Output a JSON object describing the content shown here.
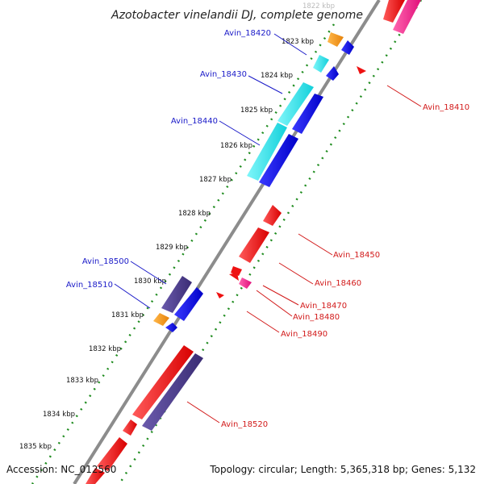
{
  "title": "Azotobacter vinelandii DJ, complete genome",
  "accession": "Accession: NC_012560",
  "topology": "Topology: circular; Length: 5,365,318 bp; Genes: 5,132",
  "kbp_labels": [
    {
      "text": "1822 kbp",
      "faded": true
    },
    {
      "text": "1823 kbp"
    },
    {
      "text": "1824 kbp"
    },
    {
      "text": "1825 kbp"
    },
    {
      "text": "1826 kbp"
    },
    {
      "text": "1827 kbp"
    },
    {
      "text": "1828 kbp"
    },
    {
      "text": "1829 kbp"
    },
    {
      "text": "1830 kbp"
    },
    {
      "text": "1831 kbp"
    },
    {
      "text": "1832 kbp"
    },
    {
      "text": "1833 kbp"
    },
    {
      "text": "1834 kbp"
    },
    {
      "text": "1835 kbp"
    }
  ],
  "gene_labels_left": [
    {
      "text": "Avin_18420"
    },
    {
      "text": "Avin_18430"
    },
    {
      "text": "Avin_18440"
    },
    {
      "text": "Avin_18500"
    },
    {
      "text": "Avin_18510"
    }
  ],
  "gene_labels_right": [
    {
      "text": "Avin_18410"
    },
    {
      "text": "Avin_18450"
    },
    {
      "text": "Avin_18460"
    },
    {
      "text": "Avin_18470"
    },
    {
      "text": "Avin_18480"
    },
    {
      "text": "Avin_18490"
    },
    {
      "text": "Avin_18520"
    }
  ],
  "colors": {
    "backbone": "#8c8c8c",
    "tick_ring": "#1f8c1f",
    "gene_red": "#ee1111",
    "gene_pink": "#ee2288",
    "gene_cyan": "#22e0e8",
    "gene_blue": "#1111dd",
    "gene_purple": "#4a3a8c",
    "gene_orange": "#f59a1a",
    "label_blue": "#1a1ac8",
    "label_red": "#d21a1a"
  }
}
